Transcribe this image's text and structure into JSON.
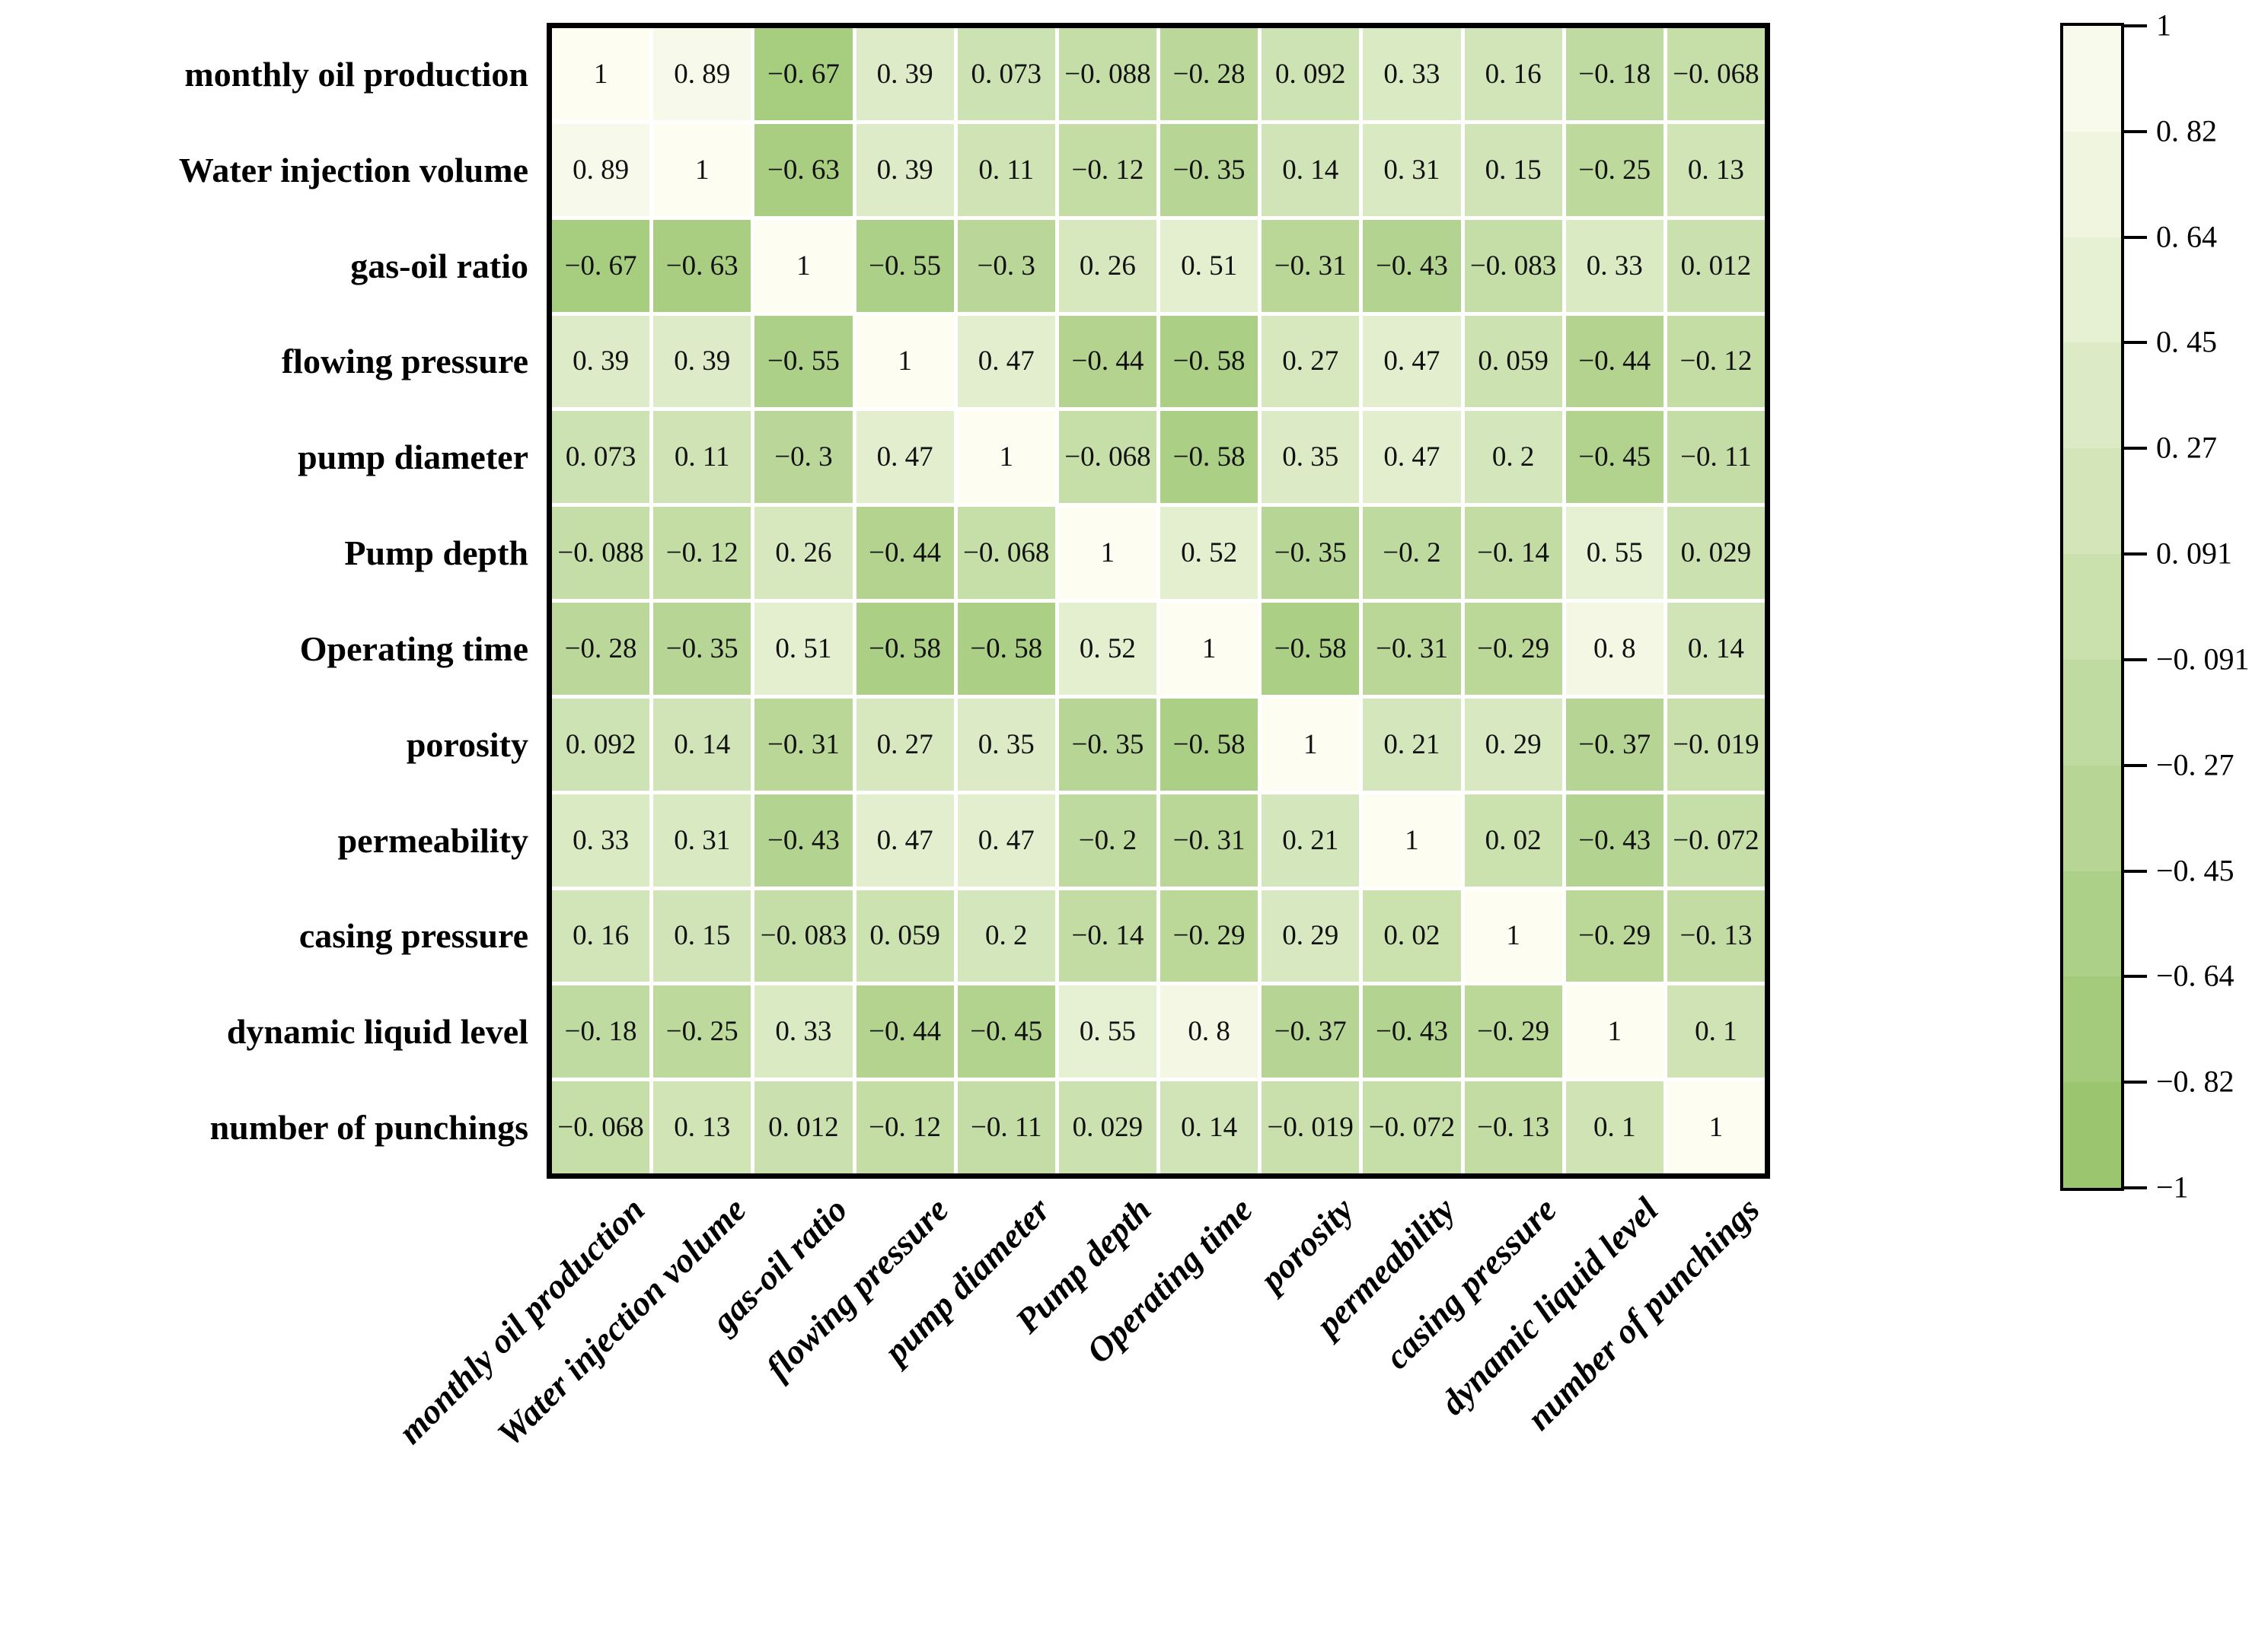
{
  "chart_data": {
    "type": "heatmap",
    "title": "",
    "description": "Correlation coefficient matrix heatmap, green colormap, values annotated in each cell",
    "variables": [
      "monthly oil production",
      "Water injection volume",
      "gas-oil ratio",
      "flowing pressure",
      "pump diameter",
      "Pump depth",
      "Operating time",
      "porosity",
      "permeability",
      "casing pressure",
      "dynamic liquid level",
      "number of punchings"
    ],
    "matrix": [
      [
        1,
        0.89,
        -0.67,
        0.39,
        0.073,
        -0.088,
        -0.28,
        0.092,
        0.33,
        0.16,
        -0.18,
        -0.068
      ],
      [
        0.89,
        1,
        -0.63,
        0.39,
        0.11,
        -0.12,
        -0.35,
        0.14,
        0.31,
        0.15,
        -0.25,
        0.13
      ],
      [
        -0.67,
        -0.63,
        1,
        -0.55,
        -0.3,
        0.26,
        0.51,
        -0.31,
        -0.43,
        -0.083,
        0.33,
        0.012
      ],
      [
        0.39,
        0.39,
        -0.55,
        1,
        0.47,
        -0.44,
        -0.58,
        0.27,
        0.47,
        0.059,
        -0.44,
        -0.12
      ],
      [
        0.073,
        0.11,
        -0.3,
        0.47,
        1,
        -0.068,
        -0.58,
        0.35,
        0.47,
        0.2,
        -0.45,
        -0.11
      ],
      [
        -0.088,
        -0.12,
        0.26,
        -0.44,
        -0.068,
        1,
        0.52,
        -0.35,
        -0.2,
        -0.14,
        0.55,
        0.029
      ],
      [
        -0.28,
        -0.35,
        0.51,
        -0.58,
        -0.58,
        0.52,
        1,
        -0.58,
        -0.31,
        -0.29,
        0.8,
        0.14
      ],
      [
        0.092,
        0.14,
        -0.31,
        0.27,
        0.35,
        -0.35,
        -0.58,
        1,
        0.21,
        0.29,
        -0.37,
        -0.019
      ],
      [
        0.33,
        0.31,
        -0.43,
        0.47,
        0.47,
        -0.2,
        -0.31,
        0.21,
        1,
        0.02,
        -0.43,
        -0.072
      ],
      [
        0.16,
        0.15,
        -0.083,
        0.059,
        0.2,
        -0.14,
        -0.29,
        0.29,
        0.02,
        1,
        -0.29,
        -0.13
      ],
      [
        -0.18,
        -0.25,
        0.33,
        -0.44,
        -0.45,
        0.55,
        0.8,
        -0.37,
        -0.43,
        -0.29,
        1,
        0.1
      ],
      [
        -0.068,
        0.13,
        0.012,
        -0.12,
        -0.11,
        0.029,
        0.14,
        -0.019,
        -0.072,
        -0.13,
        0.1,
        1
      ]
    ],
    "colorbar": {
      "tick_labels": [
        "1",
        "0. 82",
        "0. 64",
        "0. 45",
        "0. 27",
        "0. 091",
        "−0. 091",
        "−0. 27",
        "−0. 45",
        "−0. 64",
        "−0. 82",
        "−1"
      ],
      "tick_values": [
        1,
        0.82,
        0.64,
        0.45,
        0.27,
        0.091,
        -0.091,
        -0.27,
        -0.45,
        -0.64,
        -0.82,
        -1
      ],
      "vmin": -1,
      "vmax": 1,
      "bands": 11,
      "position": "right"
    },
    "colors": {
      "cmap_high": "#fdfdf1",
      "cmap_low": "#96c369",
      "gridline": "#ffffff",
      "border": "#000000",
      "text": "#000000"
    },
    "layout": {
      "grid": "white gridlines between cells",
      "x_tick_rotation_deg": 45,
      "legend": "none"
    }
  }
}
